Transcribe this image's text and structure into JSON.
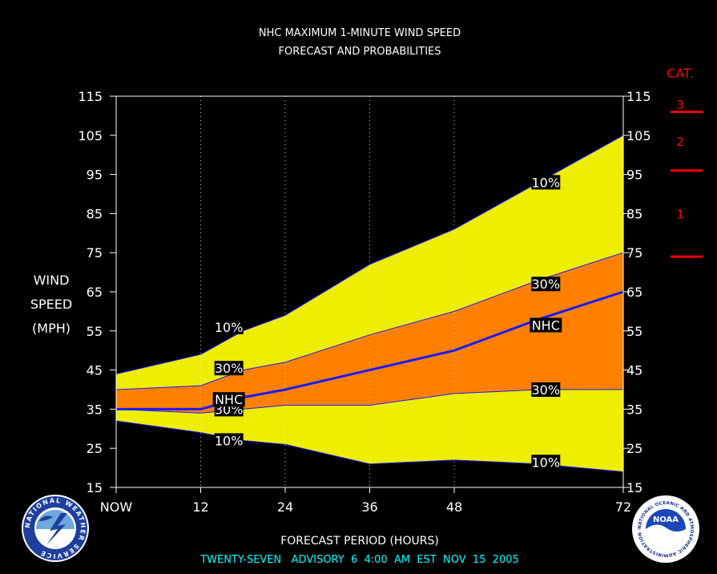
{
  "chart_data": {
    "type": "area",
    "title": "NHC MAXIMUM 1-MINUTE WIND SPEED",
    "subtitle": "FORECAST AND PROBABILITIES",
    "xlabel": "FORECAST PERIOD (HOURS)",
    "ylabel_lines": [
      "WIND",
      "SPEED",
      "(MPH)"
    ],
    "x_ticks": [
      0,
      12,
      24,
      36,
      48,
      72
    ],
    "x_tick_labels": [
      "NOW",
      "12",
      "24",
      "36",
      "48",
      "72"
    ],
    "xlim": [
      0,
      72
    ],
    "ylim": [
      15,
      115
    ],
    "y_ticks": [
      15,
      25,
      35,
      45,
      55,
      65,
      75,
      85,
      95,
      105,
      115
    ],
    "x": [
      0,
      12,
      18,
      24,
      36,
      48,
      60,
      72
    ],
    "series": [
      {
        "name": "10%",
        "values": [
          44,
          49,
          55,
          59,
          72,
          81,
          93,
          105
        ]
      },
      {
        "name": "30%",
        "values": [
          40,
          41,
          45,
          47,
          54,
          60,
          68,
          75
        ]
      },
      {
        "name": "NHC",
        "values": [
          35,
          35,
          38,
          40,
          45,
          50,
          58,
          65
        ]
      },
      {
        "name": "30%",
        "values": [
          35,
          34,
          35,
          36,
          36,
          39,
          40,
          40
        ]
      },
      {
        "name": "10%",
        "values": [
          32,
          29,
          27,
          26,
          21,
          22,
          21,
          19
        ]
      }
    ],
    "band_labels": [
      {
        "text": "10%",
        "x": 16,
        "y": 56
      },
      {
        "text": "30%",
        "x": 16,
        "y": 45.5
      },
      {
        "text": "30%",
        "x": 16,
        "y": 35
      },
      {
        "text": "NHC",
        "x": 16,
        "y": 37.5
      },
      {
        "text": "10%",
        "x": 16,
        "y": 27
      },
      {
        "text": "10%",
        "x": 61,
        "y": 93
      },
      {
        "text": "30%",
        "x": 61,
        "y": 67
      },
      {
        "text": "NHC",
        "x": 61,
        "y": 56.5
      },
      {
        "text": "30%",
        "x": 61,
        "y": 40
      },
      {
        "text": "10%",
        "x": 61,
        "y": 21.5
      }
    ],
    "category_scale": {
      "title": "CAT.",
      "levels": [
        {
          "label": "3",
          "min": 111
        },
        {
          "label": "2",
          "min": 96
        },
        {
          "label": "1",
          "min": 74
        }
      ]
    },
    "colors": {
      "outer_band": "#eeee00",
      "inner_band": "#ff8000",
      "nhc_line": "#1a1aff",
      "category": "#ff0000",
      "footer": "#00ffff"
    }
  },
  "footer": {
    "text": "TWENTY-SEVEN   ADVISORY  6  4:00  AM  EST  NOV  15  2005"
  },
  "logos": {
    "nws_text": "NATIONAL WEATHER SERVICE",
    "noaa_text": "NOAA",
    "noaa_ring_text": "NATIONAL OCEANIC AND ATMOSPHERIC ADMINISTRATION · U.S. DEPARTMENT OF COMMERCE"
  }
}
